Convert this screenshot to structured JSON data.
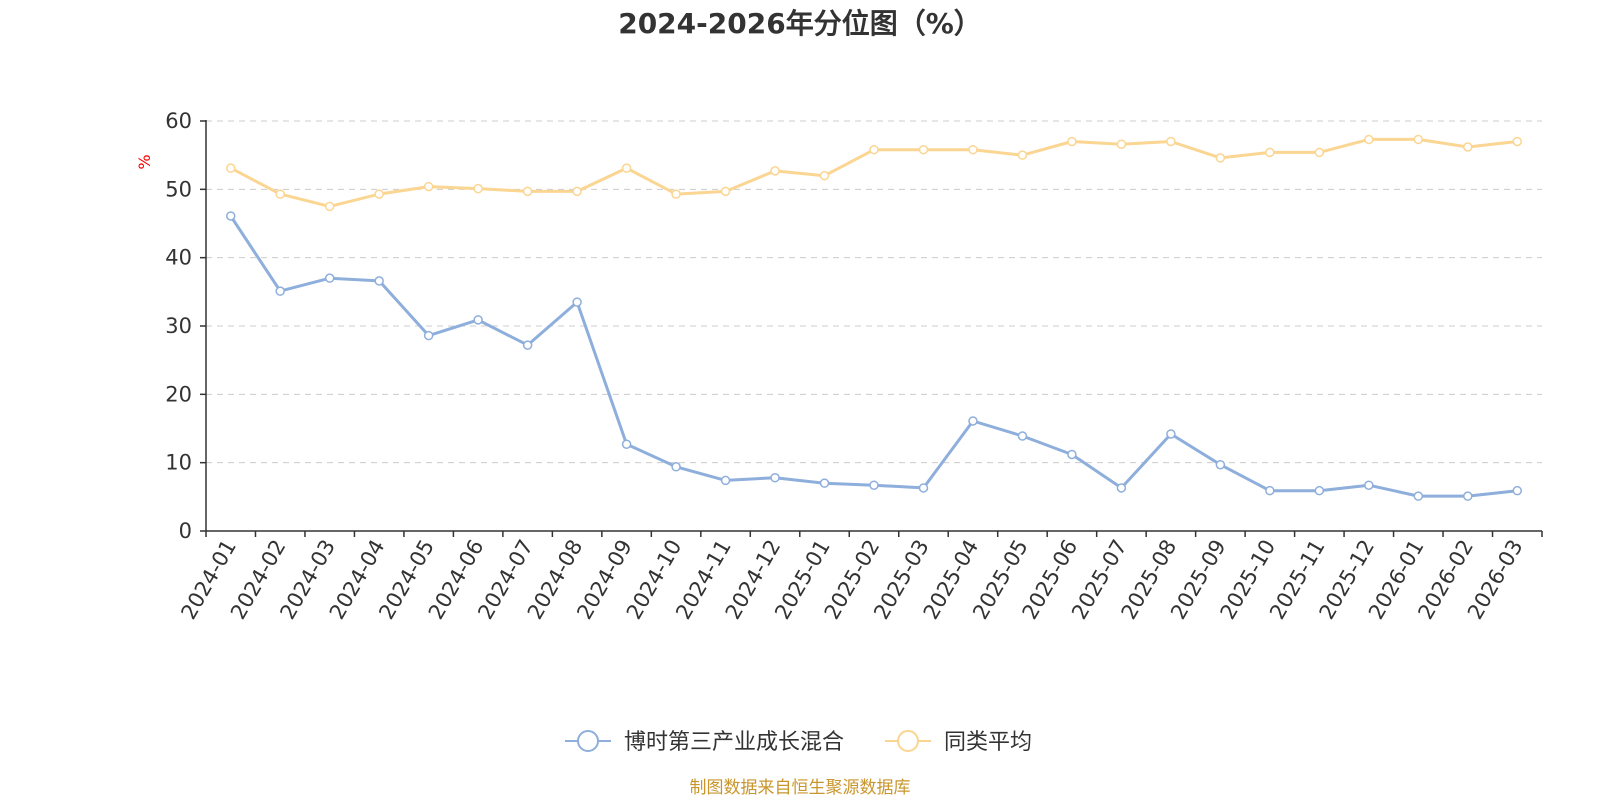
{
  "colors": {
    "fund": "#8eaedb",
    "avg": "#fbd592",
    "grid": "#cccccc",
    "axis": "#333333",
    "ylabel": "#ff0000",
    "source": "#c9962d"
  },
  "chart_data": {
    "type": "line",
    "title": "2024-2026年分位图（%）",
    "ylabel": "%",
    "xlabel": "",
    "ylim": [
      0,
      60
    ],
    "yticks": [
      0,
      10,
      20,
      30,
      40,
      50,
      60
    ],
    "grid": true,
    "legend": "bottom-center",
    "categories": [
      "2024-01",
      "2024-02",
      "2024-03",
      "2024-04",
      "2024-05",
      "2024-06",
      "2024-07",
      "2024-08",
      "2024-09",
      "2024-10",
      "2024-11",
      "2024-12",
      "2025-01",
      "2025-02",
      "2025-03",
      "2025-04",
      "2025-05",
      "2025-06",
      "2025-07",
      "2025-08",
      "2025-09",
      "2025-10",
      "2025-11",
      "2025-12",
      "2026-01",
      "2026-02",
      "2026-03"
    ],
    "series": [
      {
        "name": "博时第三产业成长混合",
        "color_key": "fund",
        "values": [
          46.1,
          35.1,
          37.0,
          36.6,
          28.6,
          30.9,
          27.2,
          33.5,
          12.7,
          9.4,
          7.4,
          7.8,
          7.0,
          6.7,
          6.3,
          16.1,
          13.9,
          11.2,
          6.3,
          14.2,
          9.7,
          5.9,
          5.9,
          6.7,
          5.1,
          5.1,
          5.9
        ]
      },
      {
        "name": "同类平均",
        "color_key": "avg",
        "values": [
          53.1,
          49.3,
          47.5,
          49.3,
          50.4,
          50.1,
          49.7,
          49.7,
          53.1,
          49.3,
          49.7,
          52.7,
          52.0,
          55.8,
          55.8,
          55.8,
          55.0,
          57.0,
          56.6,
          57.0,
          54.6,
          55.4,
          55.4,
          57.3,
          57.3,
          56.2,
          57.0
        ]
      }
    ]
  },
  "footer": {
    "source": "制图数据来自恒生聚源数据库"
  }
}
